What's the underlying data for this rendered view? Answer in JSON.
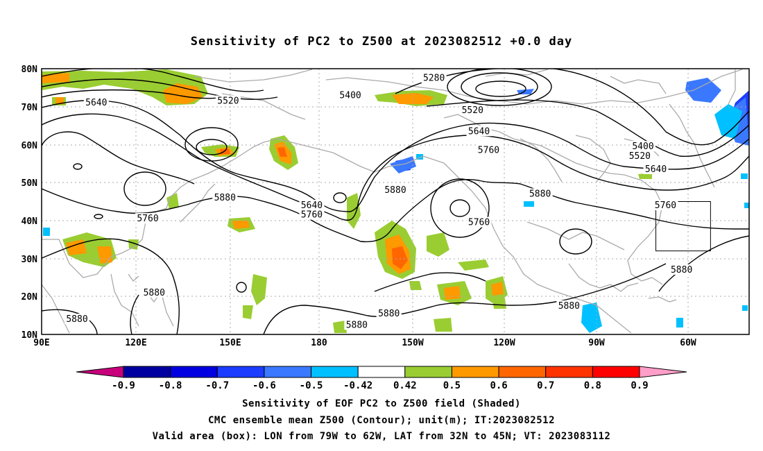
{
  "title": "Sensitivity of PC2 to Z500 at 2023082512 +0.0 day",
  "map": {
    "lat_labels": [
      "80N",
      "70N",
      "60N",
      "50N",
      "40N",
      "30N",
      "20N",
      "10N"
    ],
    "lon_labels": [
      "90E",
      "120E",
      "150E",
      "180",
      "150W",
      "120W",
      "90W",
      "60W"
    ],
    "contour_labels": [
      {
        "text": "5280",
        "lon": -148,
        "lat": 77.5
      },
      {
        "text": "5400",
        "lon": -174,
        "lat": 73
      },
      {
        "text": "5400",
        "lon": -83,
        "lat": 59.5
      },
      {
        "text": "5520",
        "lon": 148,
        "lat": 71.5
      },
      {
        "text": "5520",
        "lon": -136,
        "lat": 69
      },
      {
        "text": "5520",
        "lon": -84,
        "lat": 57
      },
      {
        "text": "5640",
        "lon": 107,
        "lat": 71
      },
      {
        "text": "5640",
        "lon": -134,
        "lat": 63.5
      },
      {
        "text": "5640",
        "lon": -79,
        "lat": 53.5
      },
      {
        "text": "5640",
        "lon": -186,
        "lat": 44
      },
      {
        "text": "5760",
        "lon": -131,
        "lat": 58.5
      },
      {
        "text": "5760",
        "lon": 123,
        "lat": 40.5
      },
      {
        "text": "5760",
        "lon": -186,
        "lat": 41.5
      },
      {
        "text": "5760",
        "lon": -134,
        "lat": 39.5
      },
      {
        "text": "5760",
        "lon": -76,
        "lat": 44
      },
      {
        "text": "5880",
        "lon": 147,
        "lat": 46
      },
      {
        "text": "5880",
        "lon": -160,
        "lat": 48
      },
      {
        "text": "5880",
        "lon": -115,
        "lat": 47
      },
      {
        "text": "5880",
        "lon": -71,
        "lat": 27
      },
      {
        "text": "5880",
        "lon": 125,
        "lat": 21
      },
      {
        "text": "5880",
        "lon": 101,
        "lat": 14
      },
      {
        "text": "5880",
        "lon": -162,
        "lat": 15.5
      },
      {
        "text": "5880",
        "lon": -172,
        "lat": 12.5
      },
      {
        "text": "5880",
        "lon": -106,
        "lat": 17.5
      }
    ],
    "valid_box": {
      "lon_min": -79,
      "lon_max": -62,
      "lat_min": 32,
      "lat_max": 45
    }
  },
  "colorbar": {
    "labels": [
      "-0.9",
      "-0.8",
      "-0.7",
      "-0.6",
      "-0.5",
      "-0.42",
      "0.42",
      "0.5",
      "0.6",
      "0.7",
      "0.8",
      "0.9"
    ],
    "colors": [
      "#0000a0",
      "#0000e0",
      "#1c3cff",
      "#3a78ff",
      "#00c0ff",
      "#ffffff",
      "#9acd32",
      "#ff9900",
      "#ff6600",
      "#ff3300",
      "#ff0000"
    ],
    "low_triangle": "#c8007c",
    "high_triangle": "#ff9ec8"
  },
  "captions": [
    "Sensitivity of EOF PC2 to Z500 field (Shaded)",
    "CMC ensemble mean Z500 (Contour); unit(m); IT:2023082512",
    "Valid area (box): LON from 79W to 62W, LAT from 32N to 45N; VT: 2023083112"
  ]
}
